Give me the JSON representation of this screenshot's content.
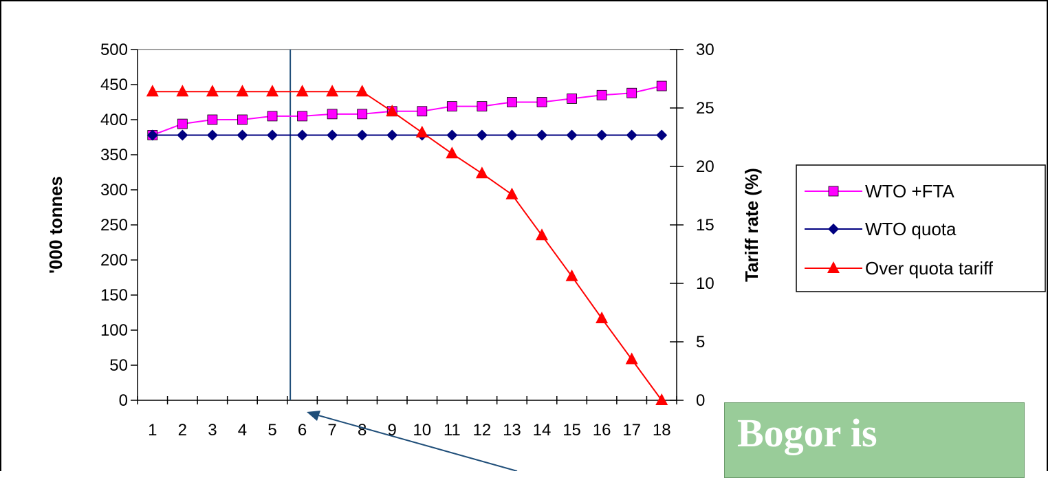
{
  "chart_data": {
    "type": "line",
    "x": [
      1,
      2,
      3,
      4,
      5,
      6,
      7,
      8,
      9,
      10,
      11,
      12,
      13,
      14,
      15,
      16,
      17,
      18
    ],
    "x_tick_labels": [
      "1",
      "2",
      "3",
      "4",
      "5",
      "6",
      "7",
      "8",
      "9",
      "10",
      "11",
      "12",
      "13",
      "14",
      "15",
      "16",
      "17",
      "18"
    ],
    "ylabel": "'000 tonnes",
    "ylabel_right": "Tariff rate (%)",
    "ylim": [
      0,
      500
    ],
    "y_ticks": [
      0,
      50,
      100,
      150,
      200,
      250,
      300,
      350,
      400,
      450,
      500
    ],
    "ylim_right": [
      0,
      30
    ],
    "y_ticks_right": [
      0,
      5,
      10,
      15,
      20,
      25,
      30
    ],
    "legend_position": "right",
    "grid": false,
    "series": [
      {
        "name": "WTO +FTA",
        "axis": "left",
        "color": "#ff00ff",
        "marker": "square",
        "values": [
          378,
          394,
          400,
          400,
          405,
          405,
          408,
          408,
          412,
          412,
          419,
          419,
          425,
          425,
          430,
          435,
          438,
          448
        ]
      },
      {
        "name": "WTO quota",
        "axis": "left",
        "color": "#000080",
        "marker": "diamond",
        "values": [
          378,
          378,
          378,
          378,
          378,
          378,
          378,
          378,
          378,
          378,
          378,
          378,
          378,
          378,
          378,
          378,
          378,
          378
        ]
      },
      {
        "name": "Over quota tariff",
        "axis": "right",
        "color": "#ff0000",
        "marker": "triangle",
        "values": [
          26.4,
          26.4,
          26.4,
          26.4,
          26.4,
          26.4,
          26.4,
          26.4,
          24.7,
          22.9,
          21.1,
          19.4,
          17.6,
          14.1,
          10.6,
          7.0,
          3.5,
          0
        ]
      }
    ],
    "reference_line": {
      "color": "#1f4e79",
      "position_x": 5.6
    },
    "annotation_arrow": {
      "color": "#1f4e79"
    }
  },
  "callout": {
    "text": "Bogor is",
    "background": "#99cc99"
  }
}
